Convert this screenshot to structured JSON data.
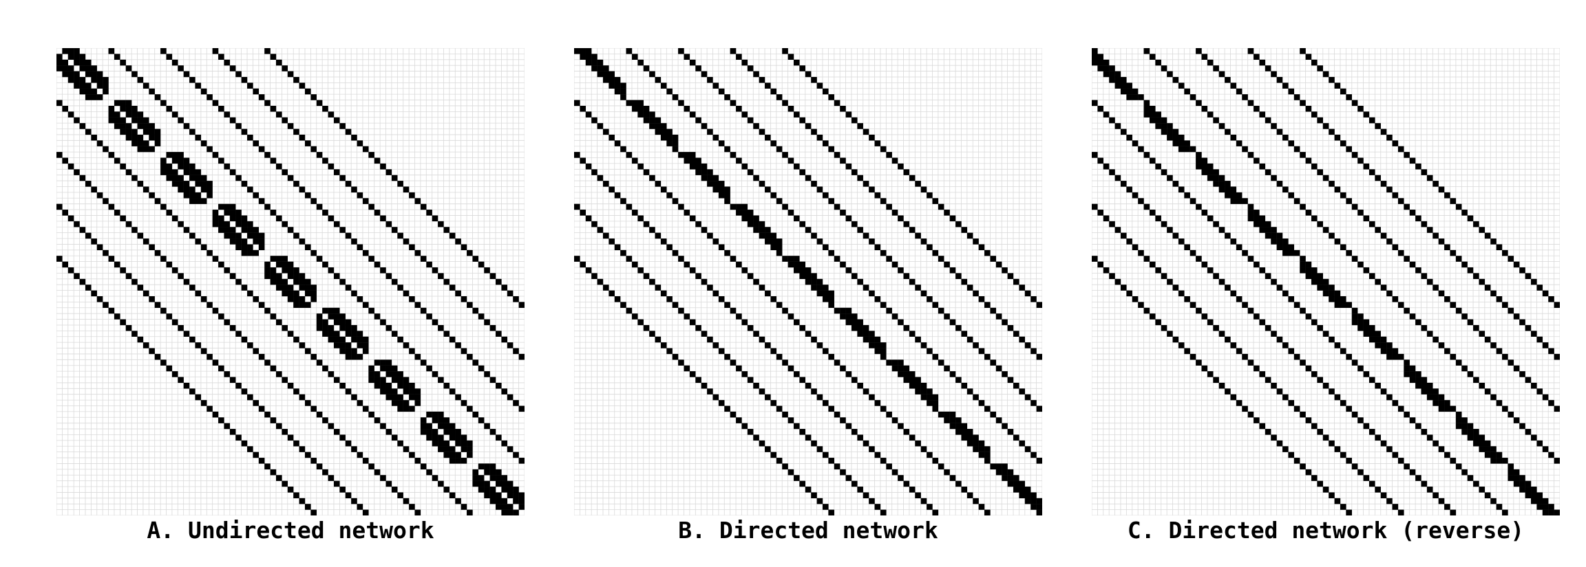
{
  "figure": {
    "matrix_size": 81,
    "block_size": 9,
    "colors": {
      "filled": "#000000",
      "empty": "#ffffff",
      "grid": "#d9d9d9"
    },
    "panels": [
      {
        "id": "A",
        "caption": "A. Undirected network",
        "block_pattern": "undirected"
      },
      {
        "id": "B",
        "caption": "B. Directed network",
        "block_pattern": "directed"
      },
      {
        "id": "C",
        "caption": "C. Directed network (reverse)",
        "block_pattern": "directed-reverse"
      }
    ]
  }
}
